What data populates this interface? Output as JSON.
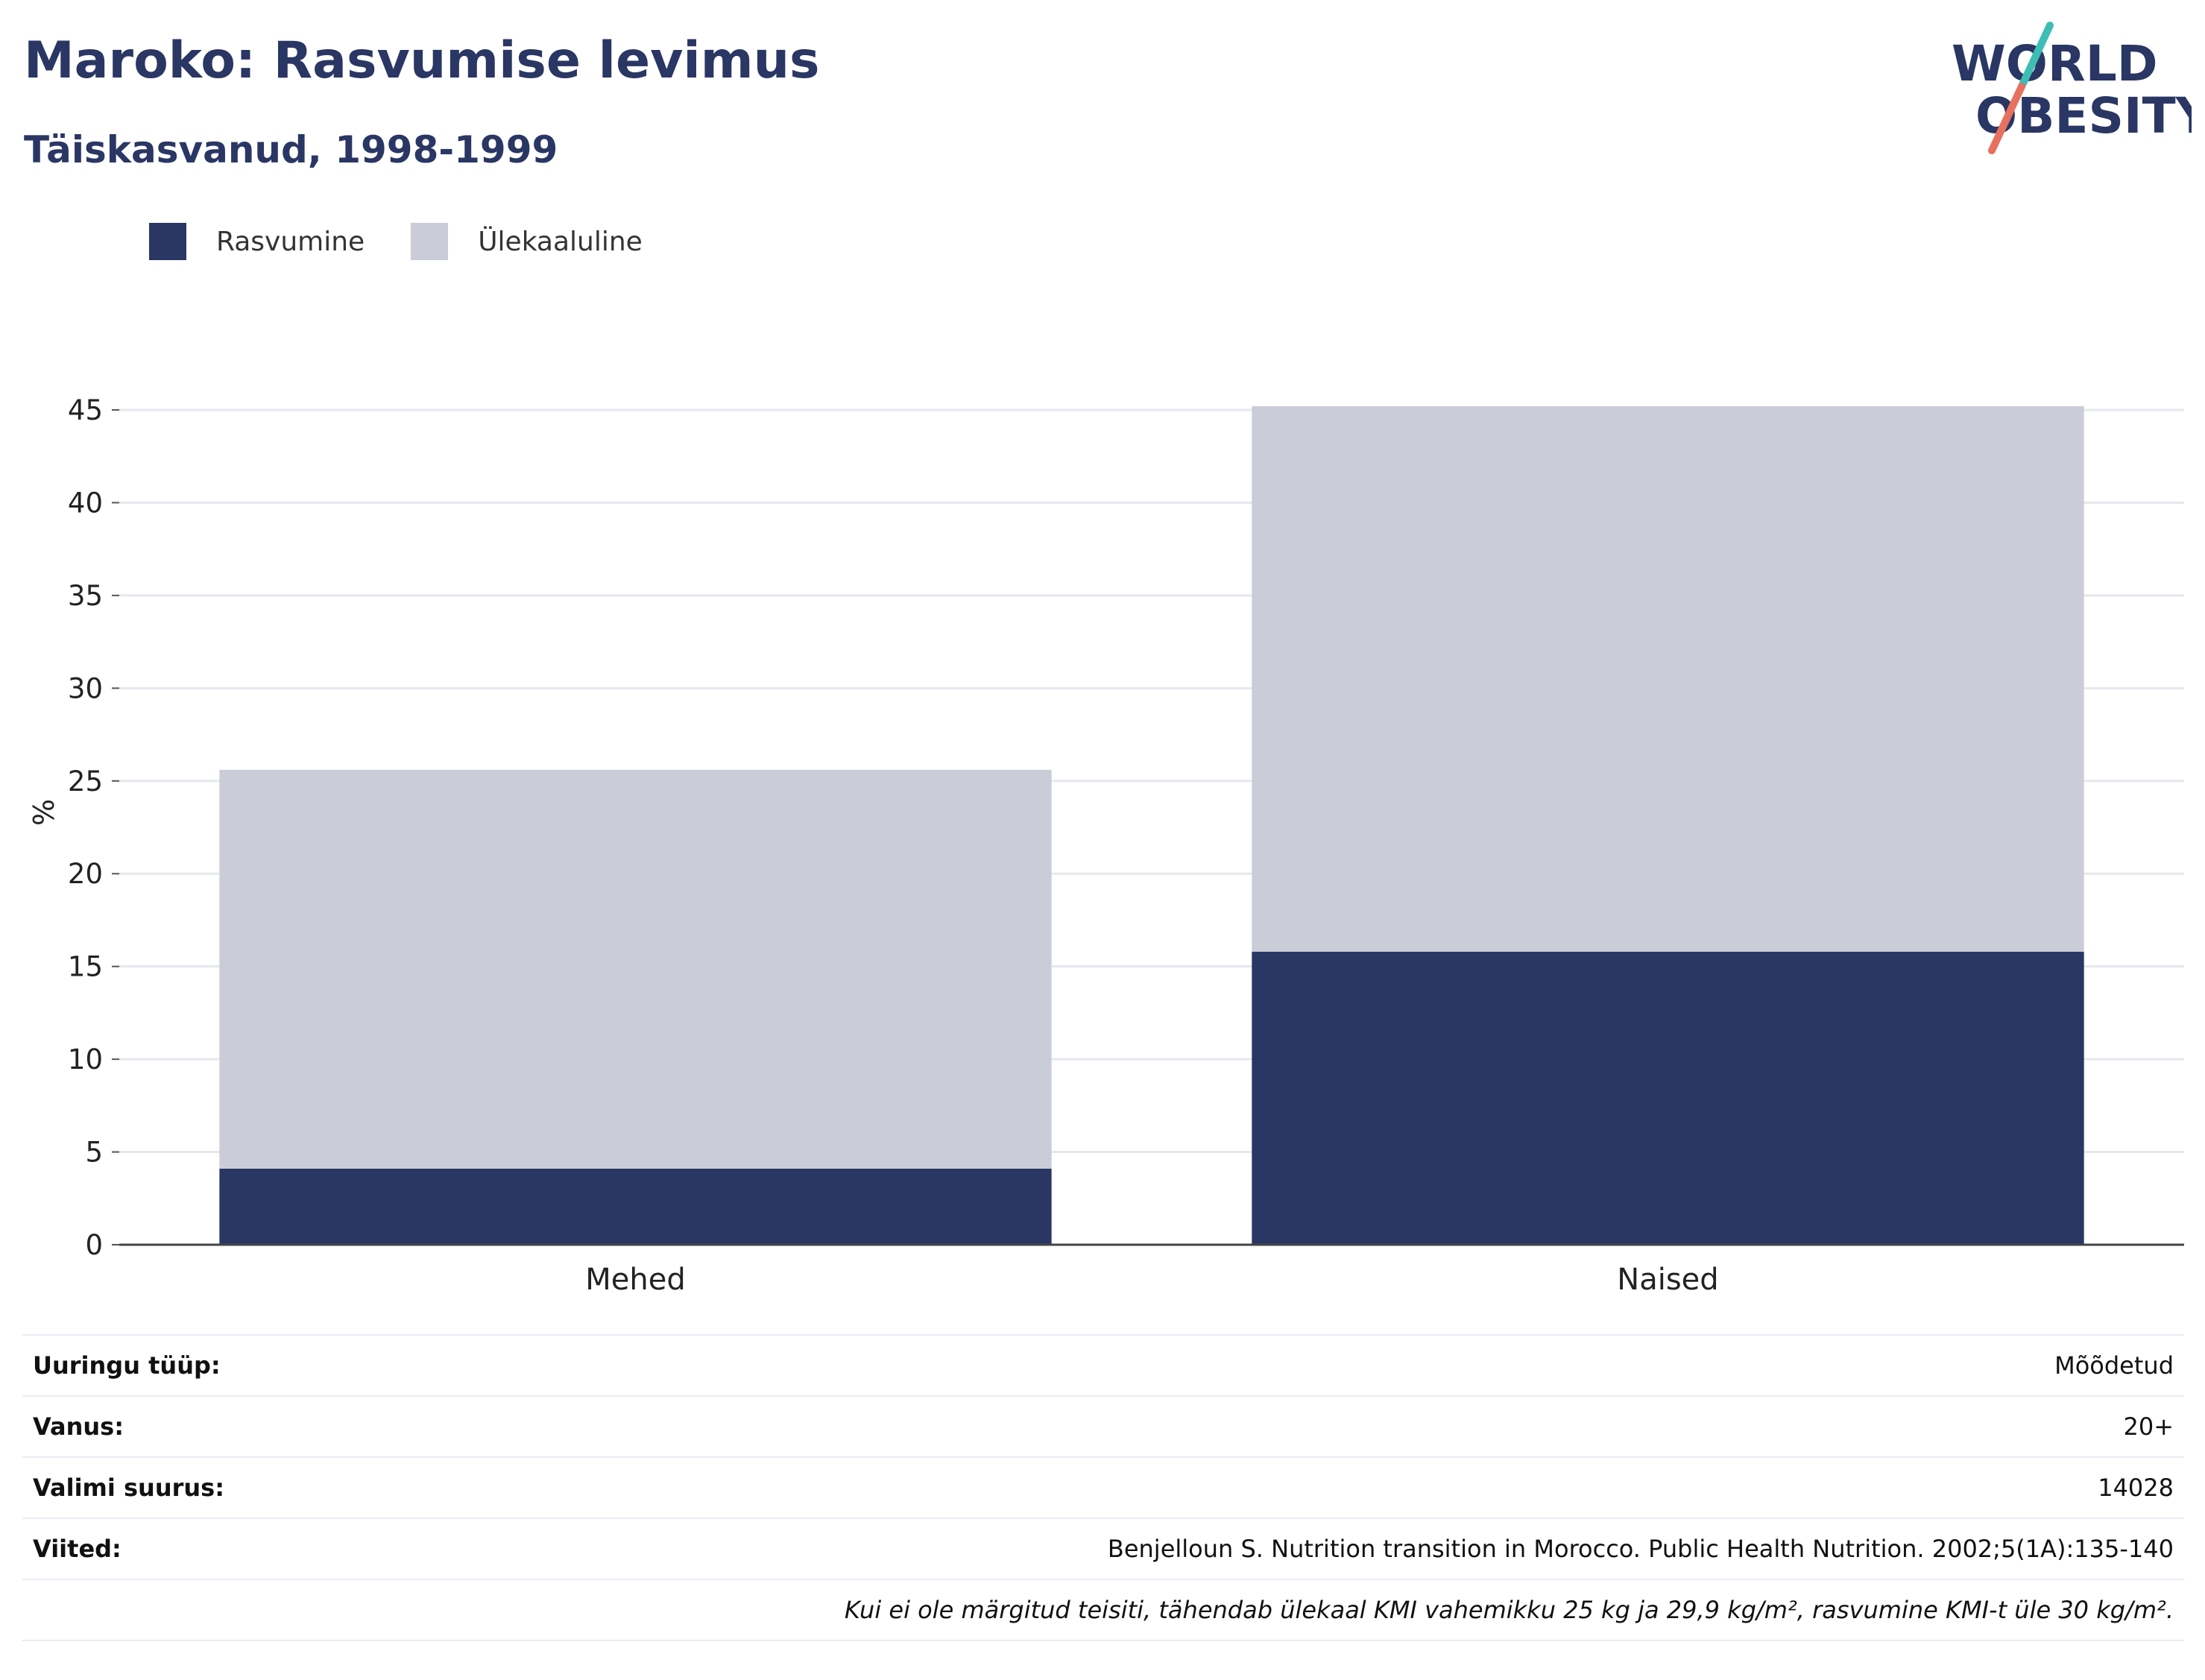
{
  "header": {
    "title": "Maroko: Rasvumise levimus",
    "subtitle": "Täiskasvanud, 1998-1999"
  },
  "logo": {
    "line1": "WORLD",
    "line2": "OBESITY",
    "colors": {
      "text": "#2a3663",
      "slash_top": "#3ebdb5",
      "slash_bottom": "#e8705f"
    }
  },
  "legend": {
    "items": [
      {
        "label": "Rasvumine",
        "color": "#2a3663"
      },
      {
        "label": "Ülekaaluline",
        "color": "#cacdd8"
      }
    ]
  },
  "chart_data": {
    "type": "bar",
    "stacked": true,
    "categories": [
      "Mehed",
      "Naised"
    ],
    "series": [
      {
        "name": "Rasvumine",
        "color": "#2a3663",
        "values": [
          4.1,
          15.8
        ]
      },
      {
        "name": "Ülekaaluline",
        "color": "#cacdd8",
        "values": [
          21.5,
          29.4
        ]
      }
    ],
    "ylabel": "%",
    "ylim": [
      0,
      45
    ],
    "yticks": [
      0,
      5,
      10,
      15,
      20,
      25,
      30,
      35,
      40,
      45
    ],
    "grid": true,
    "legend_position": "top-left"
  },
  "info": {
    "rows": [
      {
        "label": "Uuringu tüüp:",
        "value": "Mõõdetud"
      },
      {
        "label": "Vanus:",
        "value": "20+"
      },
      {
        "label": "Valimi suurus:",
        "value": "14028"
      },
      {
        "label": "Viited:",
        "value": "Benjelloun S. Nutrition transition in Morocco. Public Health Nutrition. 2002;5(1A):135-140"
      }
    ],
    "note": "Kui ei ole märgitud teisiti, tähendab ülekaal KMI vahemikku 25 kg ja 29,9 kg/m², rasvumine KMI-t üle 30 kg/m²."
  }
}
